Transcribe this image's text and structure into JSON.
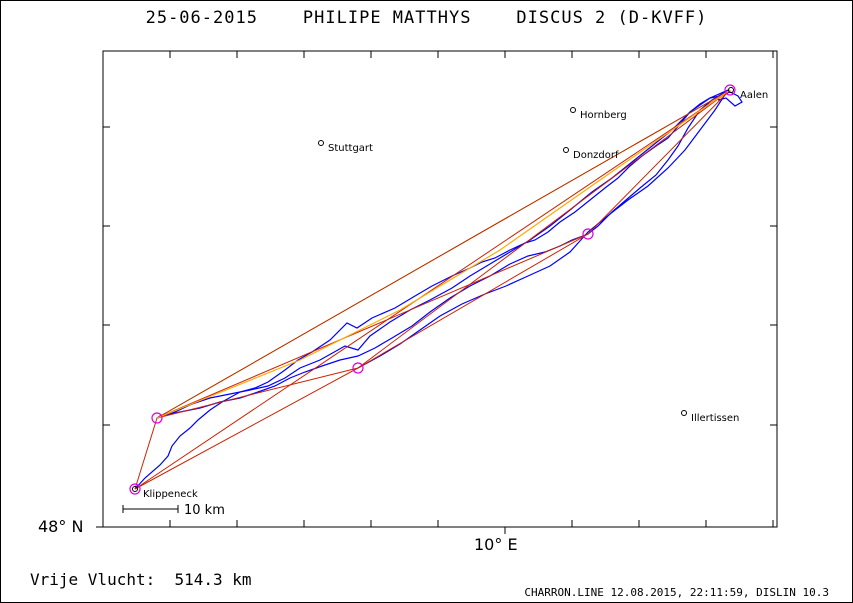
{
  "header": {
    "date": "25-06-2015",
    "pilot": "PHILIPE MATTHYS",
    "glider": "DISCUS 2 (D-KVFF)"
  },
  "axes": {
    "lat_label": "48° N",
    "lon_label": "10° E"
  },
  "scale_label": "10 km",
  "places": [
    {
      "name": "Aalen"
    },
    {
      "name": "Hornberg"
    },
    {
      "name": "Stuttgart"
    },
    {
      "name": "Donzdorf"
    },
    {
      "name": "Illertissen"
    },
    {
      "name": "Klippeneck"
    }
  ],
  "footer": {
    "distance_label": "Vrije Vlucht:  514.3 km",
    "software": "CHARRON.LINE 12.08.2015, 22:11:59, DISLIN 10.3"
  },
  "colors": {
    "track": "#0000ff",
    "task": "#cc2200",
    "optimized": "#ffaa00",
    "direct": "#66dd00",
    "turnpoint": "#dd00dd",
    "frame": "#000000"
  }
}
